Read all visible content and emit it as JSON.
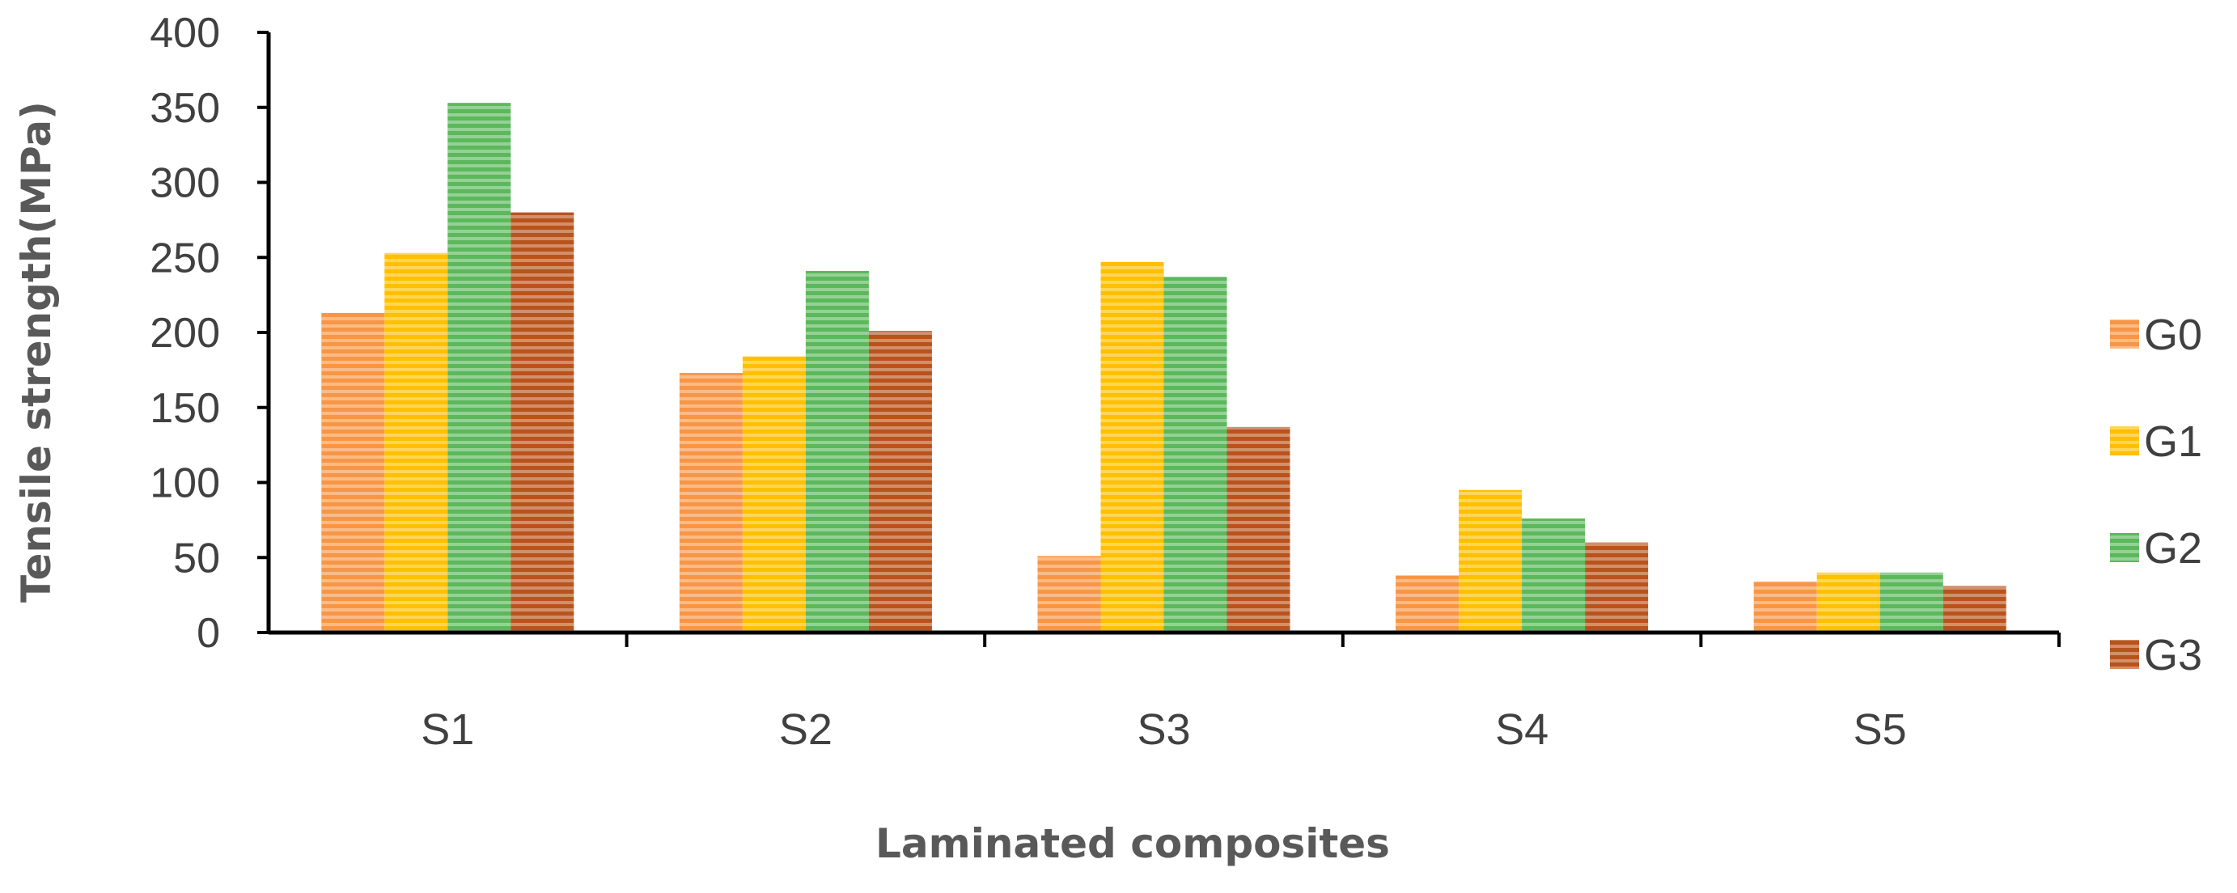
{
  "chart_data": {
    "type": "bar",
    "title": "",
    "xlabel": "Laminated composites",
    "ylabel": "Tensile strength(MPa)",
    "categories": [
      "S1",
      "S2",
      "S3",
      "S4",
      "S5"
    ],
    "ylim": [
      0,
      400
    ],
    "yticks": [
      0,
      50,
      100,
      150,
      200,
      250,
      300,
      350,
      400
    ],
    "grid": false,
    "legend_position": "right",
    "series": [
      {
        "name": "G0",
        "color": "#f79646",
        "values": [
          213,
          173,
          51,
          38,
          34
        ]
      },
      {
        "name": "G1",
        "color": "#ffc000",
        "values": [
          253,
          184,
          247,
          95,
          40
        ]
      },
      {
        "name": "G2",
        "color": "#5cb85c",
        "values": [
          353,
          241,
          237,
          76,
          40
        ]
      },
      {
        "name": "G3",
        "color": "#b9531c",
        "values": [
          280,
          201,
          137,
          60,
          31
        ]
      }
    ]
  }
}
